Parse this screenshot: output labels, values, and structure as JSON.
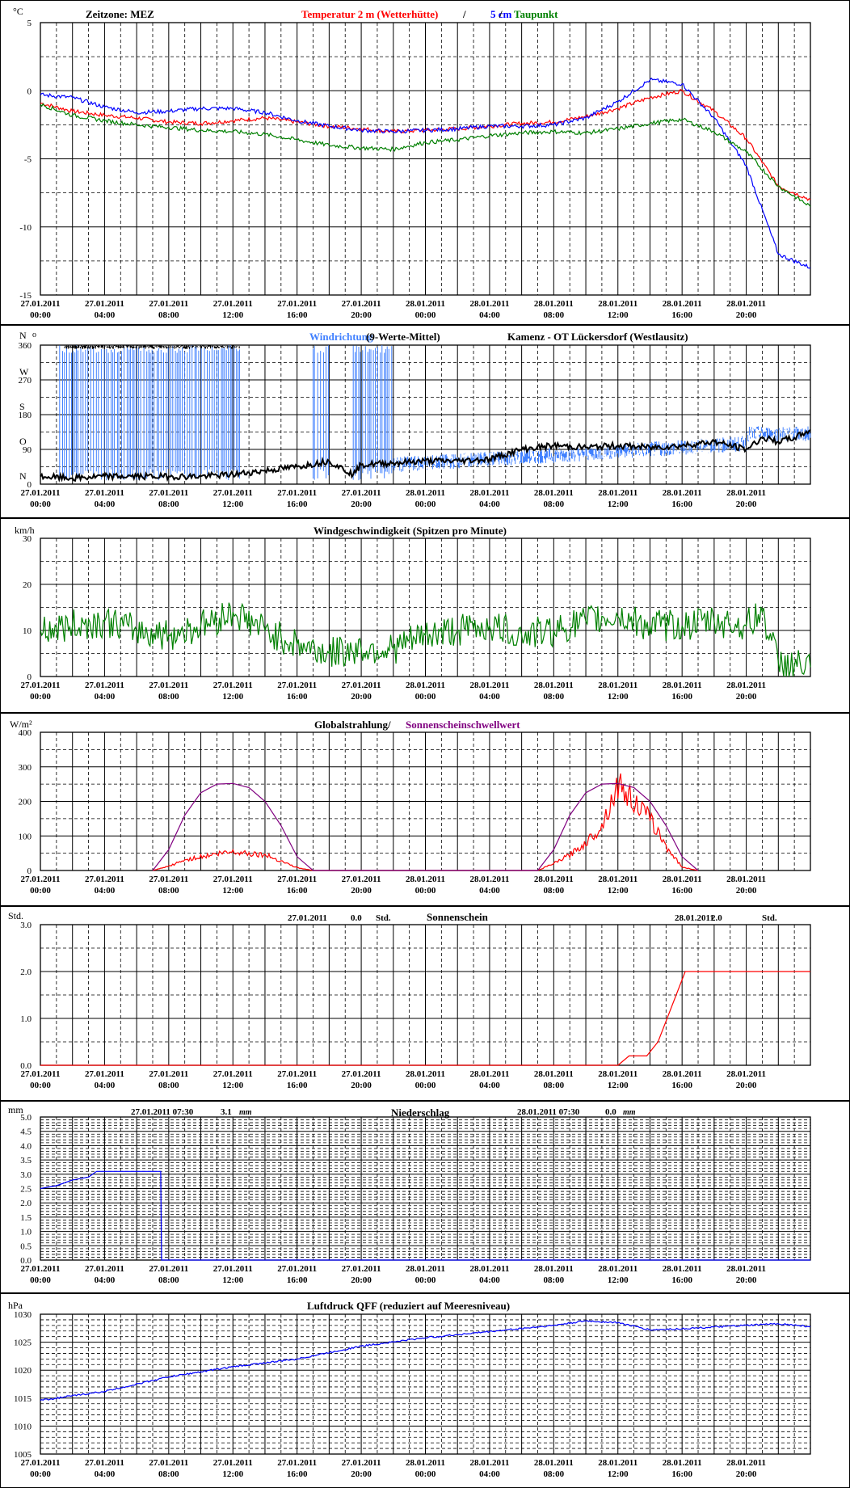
{
  "time_ticks": [
    "27.01.2011|00:00",
    "27.01.2011|04:00",
    "27.01.2011|08:00",
    "27.01.2011|12:00",
    "27.01.2011|16:00",
    "27.01.2011|20:00",
    "28.01.2011|00:00",
    "28.01.2011|04:00",
    "28.01.2011|08:00",
    "28.01.2011|12:00",
    "28.01.2011|16:00",
    "28.01.2011|20:00"
  ],
  "colors": {
    "red": "#ff0000",
    "blue": "#0000ff",
    "green": "#008000",
    "purple": "#800080",
    "lightblue": "#4080ff",
    "black": "#000000"
  },
  "chart_data": [
    {
      "id": "temperature",
      "type": "line",
      "unit": "°C",
      "title_parts": [
        {
          "text": "Zeitzone: MEZ",
          "color": "#000000"
        },
        {
          "text": "Temperatur 2 m (Wetterhütte)",
          "color": "#ff0000"
        },
        {
          "text": " / ",
          "color": "#000000"
        },
        {
          "text": "5 cm",
          "color": "#0000ff"
        },
        {
          "text": " / ",
          "color": "#000000"
        },
        {
          "text": "Taupunkt",
          "color": "#008000"
        }
      ],
      "ylim": [
        -15,
        5
      ],
      "y_ticks": [
        5,
        0,
        -5,
        -10,
        -15
      ],
      "y_tick_labels": [
        "5",
        "0",
        "-5",
        "-10",
        "-15"
      ],
      "x_hours": [
        0,
        2,
        4,
        6,
        8,
        10,
        12,
        14,
        16,
        18,
        20,
        22,
        24,
        26,
        28,
        30,
        32,
        34,
        36,
        38,
        40,
        42,
        44,
        46,
        48
      ],
      "series": [
        {
          "key": "t2m",
          "color": "#ff0000",
          "values": [
            -0.9,
            -1.5,
            -1.8,
            -2.0,
            -2.3,
            -2.4,
            -2.2,
            -2.0,
            -2.3,
            -2.6,
            -2.8,
            -3.0,
            -2.9,
            -2.8,
            -2.6,
            -2.4,
            -2.3,
            -1.9,
            -1.3,
            -0.5,
            0.0,
            -1.5,
            -3.5,
            -7.0,
            -8.0
          ]
        },
        {
          "key": "t5cm",
          "color": "#0000ff",
          "values": [
            -0.3,
            -0.5,
            -1.2,
            -1.6,
            -1.5,
            -1.3,
            -1.3,
            -1.6,
            -2.2,
            -2.6,
            -2.9,
            -3.0,
            -2.9,
            -2.8,
            -2.6,
            -2.6,
            -2.5,
            -2.0,
            -0.8,
            0.8,
            0.5,
            -2.0,
            -5.5,
            -12.0,
            -13.0
          ]
        },
        {
          "key": "dew",
          "color": "#008000",
          "values": [
            -1.0,
            -1.8,
            -2.2,
            -2.5,
            -2.7,
            -2.9,
            -3.0,
            -3.2,
            -3.6,
            -4.0,
            -4.2,
            -4.3,
            -3.8,
            -3.6,
            -3.3,
            -3.1,
            -3.0,
            -3.1,
            -2.8,
            -2.4,
            -2.1,
            -3.0,
            -4.5,
            -7.0,
            -8.5
          ]
        }
      ]
    },
    {
      "id": "wind_direction",
      "type": "line",
      "unit": "N",
      "unit_symbol": "o",
      "title_parts": [
        {
          "text": "Windrichtung",
          "color": "#4080ff"
        },
        {
          "text": " (9-Werte-Mittel)",
          "color": "#000000"
        },
        {
          "text": "Kamenz - OT Lückersdorf (Westlausitz)",
          "color": "#000000"
        }
      ],
      "ylim": [
        0,
        360
      ],
      "y_ticks": [
        360,
        270,
        180,
        90,
        0
      ],
      "y_tick_labels": [
        "360",
        "270",
        "180",
        "90",
        "0"
      ],
      "y_dir_labels": [
        {
          "text": "W",
          "value": 270
        },
        {
          "text": "S",
          "value": 180
        },
        {
          "text": "O",
          "value": 90
        },
        {
          "text": "N",
          "value": 0
        }
      ],
      "x_hours": [
        0,
        2,
        4,
        6,
        8,
        10,
        12,
        14,
        16,
        18,
        19.5,
        20,
        22,
        24,
        26,
        28,
        30,
        32,
        34,
        36,
        38,
        40,
        42,
        44,
        45,
        46,
        47,
        48
      ],
      "series": [
        {
          "key": "direction_mean",
          "color": "#000000",
          "values": [
            20,
            15,
            20,
            20,
            20,
            20,
            25,
            35,
            45,
            60,
            25,
            50,
            55,
            60,
            60,
            65,
            90,
            100,
            95,
            100,
            95,
            100,
            110,
            90,
            120,
            110,
            120,
            140
          ]
        }
      ],
      "spikes_note_hours": [
        [
          1.2,
          12.5
        ],
        [
          17,
          18
        ],
        [
          19.5,
          22
        ]
      ]
    },
    {
      "id": "wind_speed",
      "type": "line",
      "unit": "km/h",
      "title_parts": [
        {
          "text": "Windgeschwindigkeit (Spitzen pro Minute)",
          "color": "#000000"
        }
      ],
      "ylim": [
        0,
        30
      ],
      "y_ticks": [
        30,
        20,
        10,
        0
      ],
      "y_tick_labels": [
        "30",
        "20",
        "10",
        "0"
      ],
      "x_hours": [
        0,
        2,
        4,
        6,
        8,
        10,
        12,
        14,
        16,
        18,
        20,
        22,
        24,
        26,
        28,
        30,
        32,
        34,
        36,
        38,
        40,
        42,
        44,
        45,
        46,
        48
      ],
      "series": [
        {
          "key": "gusts",
          "color": "#008000",
          "values": [
            10,
            11,
            12,
            10,
            9,
            11,
            14,
            10,
            7,
            5,
            6,
            6,
            9,
            10,
            11,
            9,
            10,
            12,
            13,
            11,
            11,
            12,
            11,
            14,
            3,
            2
          ]
        }
      ]
    },
    {
      "id": "radiation",
      "type": "line",
      "unit": "W/m²",
      "title_parts": [
        {
          "text": "Globalstrahlung/ ",
          "color": "#000000"
        },
        {
          "text": "Sonnenscheinschwellwert",
          "color": "#800080"
        }
      ],
      "ylim": [
        0,
        400
      ],
      "y_ticks": [
        400,
        300,
        200,
        100,
        0
      ],
      "y_tick_labels": [
        "400",
        "300",
        "200",
        "100",
        "0"
      ],
      "x_hours": [
        7,
        8,
        9,
        10,
        11,
        12,
        13,
        14,
        15,
        16,
        17,
        31,
        32,
        33,
        34,
        35,
        36,
        37,
        38,
        39,
        40,
        41
      ],
      "series": [
        {
          "key": "global",
          "color": "#ff0000",
          "values": [
            0,
            12,
            30,
            40,
            48,
            55,
            50,
            45,
            28,
            8,
            0,
            0,
            20,
            45,
            80,
            130,
            250,
            200,
            150,
            70,
            10,
            0
          ]
        },
        {
          "key": "threshold",
          "color": "#800080",
          "values": [
            0,
            60,
            160,
            225,
            250,
            252,
            240,
            200,
            130,
            40,
            0,
            0,
            60,
            160,
            225,
            250,
            252,
            240,
            200,
            130,
            40,
            0
          ]
        }
      ]
    },
    {
      "id": "sunshine",
      "type": "line",
      "unit": "Std.",
      "title_parts": [
        {
          "text": "Sonnenschein",
          "color": "#000000"
        }
      ],
      "summaries": [
        {
          "date": "27.01.2011",
          "value": "0.0",
          "unit": "Std."
        },
        {
          "date": "28.01.2011",
          "value": "2.0",
          "unit": "Std."
        }
      ],
      "ylim": [
        0,
        3
      ],
      "y_ticks": [
        3,
        2,
        1,
        0
      ],
      "y_tick_labels": [
        "3.0",
        "2.0",
        "1.0",
        "0.0"
      ],
      "x_hours": [
        0,
        36,
        36.7,
        37.8,
        38.5,
        40.2,
        48
      ],
      "series": [
        {
          "key": "cumulative",
          "color": "#ff0000",
          "values": [
            0,
            0,
            0.2,
            0.2,
            0.5,
            2.0,
            2.0
          ]
        }
      ]
    },
    {
      "id": "precipitation",
      "type": "line",
      "unit": "mm",
      "title_parts": [
        {
          "text": "Niederschlag",
          "color": "#000000"
        }
      ],
      "summaries": [
        {
          "date": "27.01.2011 07:30",
          "value": "3.1",
          "unit": "mm"
        },
        {
          "date": "28.01.2011 07:30",
          "value": "0.0",
          "unit": "mm"
        }
      ],
      "ylim": [
        0,
        5
      ],
      "y_ticks": [
        5,
        4.5,
        4,
        3.5,
        3,
        2.5,
        2,
        1.5,
        1,
        0.5,
        0
      ],
      "y_tick_labels": [
        "5.0",
        "4.5",
        "4.0",
        "3.5",
        "3.0",
        "2.5",
        "2.0",
        "1.5",
        "1.0",
        "0.5",
        "0.0"
      ],
      "x_hours": [
        0,
        1,
        2,
        3,
        3.5,
        5,
        7.5,
        7.55,
        48
      ],
      "series": [
        {
          "key": "precip",
          "color": "#0000ff",
          "values": [
            2.5,
            2.6,
            2.8,
            2.9,
            3.1,
            3.1,
            3.1,
            0.0,
            0.0
          ]
        }
      ]
    },
    {
      "id": "pressure",
      "type": "line",
      "unit": "hPa",
      "title_parts": [
        {
          "text": "Luftdruck QFF (reduziert auf Meeresniveau)",
          "color": "#000000"
        }
      ],
      "ylim": [
        1005,
        1030
      ],
      "y_ticks": [
        1030,
        1025,
        1020,
        1015,
        1010,
        1005
      ],
      "y_tick_labels": [
        "1030",
        "1025",
        "1020",
        "1015",
        "1010",
        "1005"
      ],
      "x_hours": [
        0,
        4,
        8,
        12,
        16,
        20,
        24,
        28,
        32,
        34,
        36,
        38,
        40,
        44,
        46,
        48
      ],
      "series": [
        {
          "key": "qff",
          "color": "#0000ff",
          "values": [
            1014.6,
            1016.2,
            1018.8,
            1020.6,
            1022.0,
            1024.3,
            1025.8,
            1026.9,
            1028.0,
            1028.8,
            1028.5,
            1027.2,
            1027.4,
            1028.0,
            1028.3,
            1027.8
          ]
        }
      ]
    }
  ]
}
